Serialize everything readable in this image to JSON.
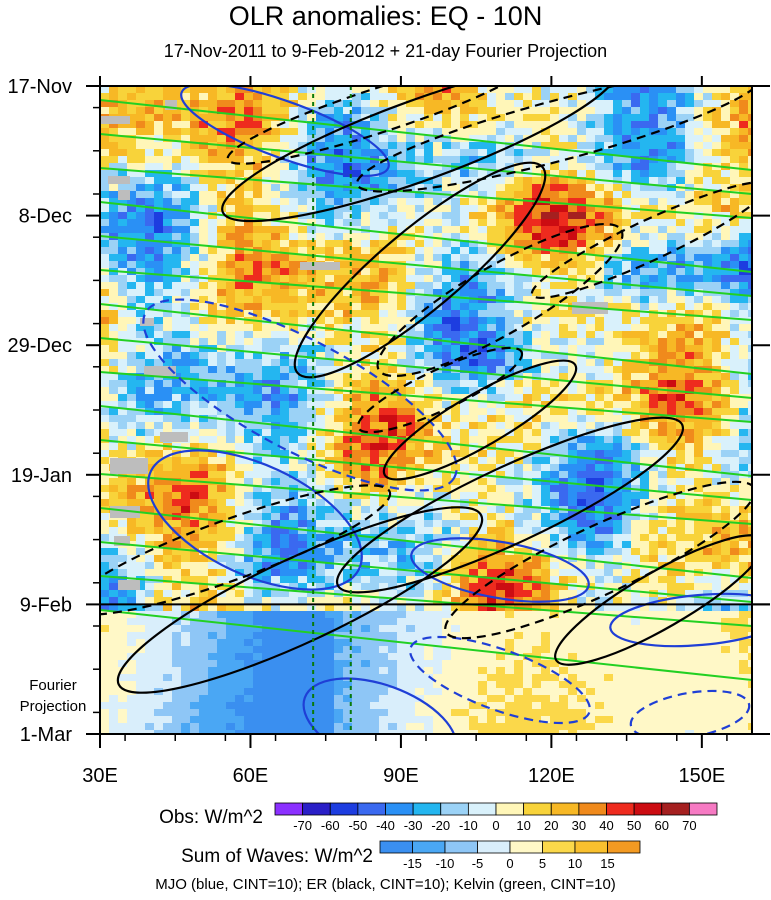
{
  "chart_data": {
    "type": "heatmap",
    "title": "OLR anomalies: EQ - 10N",
    "subtitle": "17-Nov-2011 to 9-Feb-2012 + 21-day Fourier Projection",
    "x_ticks": [
      "30E",
      "60E",
      "90E",
      "120E",
      "150E"
    ],
    "x_tick_values": [
      30,
      60,
      90,
      120,
      150
    ],
    "xlim": [
      30,
      160
    ],
    "y_ticks": [
      "17-Nov",
      "8-Dec",
      "29-Dec",
      "19-Jan",
      "9-Feb",
      "1-Mar"
    ],
    "y_tick_days": [
      0,
      21,
      42,
      63,
      84,
      105
    ],
    "ylim_days": [
      0,
      105
    ],
    "projection_start_day": 84,
    "projection_label": [
      "Fourier",
      "Projection"
    ],
    "reference_lines_lon": [
      72.5,
      80
    ],
    "obs_colorbar": {
      "label": "Obs: W/m^2",
      "ticks": [
        "-70",
        "-60",
        "-50",
        "-40",
        "-30",
        "-20",
        "-10",
        "0",
        "10",
        "20",
        "30",
        "40",
        "50",
        "60",
        "70"
      ],
      "colors": [
        "#8b30ff",
        "#2a1fc7",
        "#1d3de0",
        "#3a69f0",
        "#2a90f5",
        "#24b6f0",
        "#9bd2f6",
        "#d9f1fb",
        "#fff6b8",
        "#f8d33a",
        "#f7b825",
        "#f08a1c",
        "#ee2b1e",
        "#cc0c12",
        "#a52020",
        "#f67ac3"
      ]
    },
    "waves_colorbar": {
      "label": "Sum of Waves: W/m^2",
      "ticks": [
        "-15",
        "-10",
        "-5",
        "0",
        "5",
        "10",
        "15"
      ],
      "colors": [
        "#3a8ff0",
        "#4aa7f4",
        "#8ec6f6",
        "#d9eefb",
        "#fff8c7",
        "#fbd84a",
        "#f9c02e",
        "#f39a22"
      ]
    },
    "wave_contours": [
      {
        "name": "MJO",
        "color": "#1f3fd6",
        "cint": 10
      },
      {
        "name": "ER",
        "color": "#000000",
        "cint": 10
      },
      {
        "name": "Kelvin",
        "color": "#22d022",
        "cint": 10
      }
    ]
  },
  "footnote": "MJO (blue, CINT=10); ER (black, CINT=10); Kelvin (green, CINT=10)"
}
